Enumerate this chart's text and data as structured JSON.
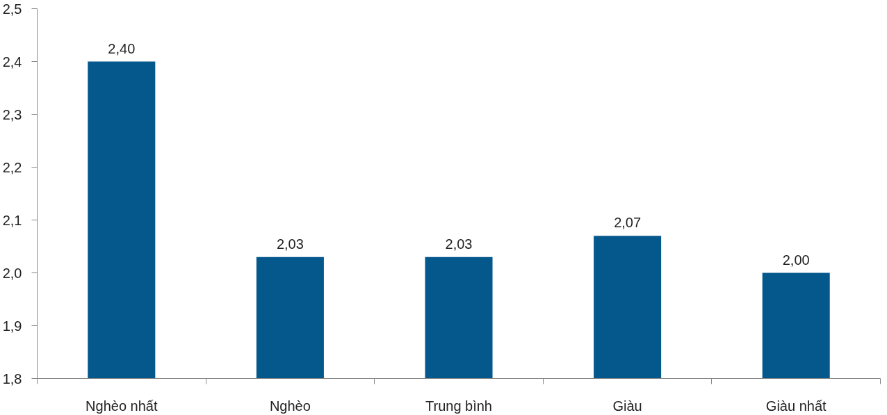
{
  "chart_data": {
    "type": "bar",
    "categories": [
      "Nghèo nhất",
      "Nghèo",
      "Trung bình",
      "Giàu",
      "Giàu nhất"
    ],
    "values": [
      2.4,
      2.03,
      2.03,
      2.07,
      2.0
    ],
    "value_labels": [
      "2,40",
      "2,03",
      "2,03",
      "2,07",
      "2,00"
    ],
    "color": "#04588c",
    "ylim": [
      1.8,
      2.5
    ],
    "yticks": [
      {
        "value": 1.8,
        "label": "1,8"
      },
      {
        "value": 1.9,
        "label": "1,9"
      },
      {
        "value": 2.0,
        "label": "2,0"
      },
      {
        "value": 2.1,
        "label": "2,1"
      },
      {
        "value": 2.2,
        "label": "2,2"
      },
      {
        "value": 2.3,
        "label": "2,3"
      },
      {
        "value": 2.4,
        "label": "2,4"
      },
      {
        "value": 2.5,
        "label": "2,5"
      }
    ],
    "grid": false
  }
}
